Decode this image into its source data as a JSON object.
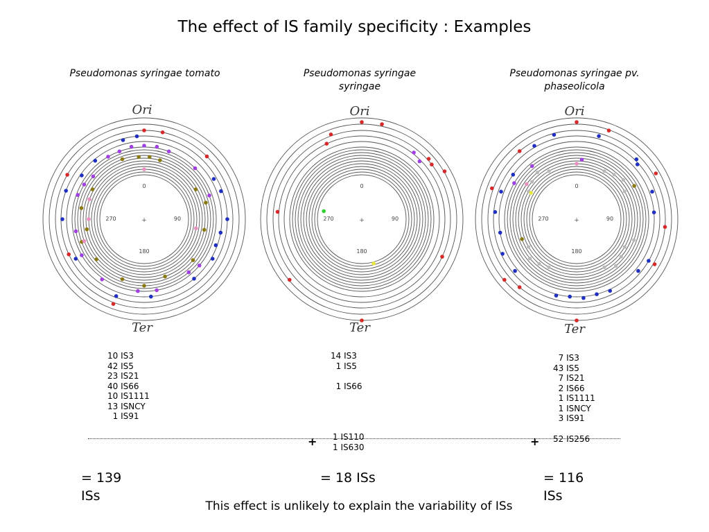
{
  "title": "The effect of IS family specificity : Examples",
  "panels": [
    {
      "species": "Pseudomonas syringae tomato",
      "ori": "Ori",
      "ter": "Ter",
      "degrees": [
        "0",
        "90",
        "180",
        "270"
      ],
      "counts": [
        "10 IS3",
        "42 IS5",
        "23 IS21",
        "40 IS66",
        "10 IS1111",
        "13 ISNCY",
        "  1 IS91"
      ],
      "extra": [],
      "total": "= 139\nISs"
    },
    {
      "species": "Pseudomonas syringae\nsyringae",
      "ori": "Ori",
      "ter": "Ter",
      "degrees": [
        "0",
        "90",
        "180",
        "270"
      ],
      "counts": [
        "14 IS3",
        "  1 IS5",
        "",
        "  1 IS66"
      ],
      "extra": [
        "1 IS110",
        "1 IS630"
      ],
      "plus": "+",
      "total": "= 18 ISs"
    },
    {
      "species": "Pseudomonas syringae pv.\nphaseolicola",
      "ori": "Ori",
      "ter": "Ter",
      "degrees": [
        "0",
        "90",
        "180",
        "270"
      ],
      "counts": [
        "  7 IS3",
        "43 IS5",
        "  7 IS21",
        "  2 IS66",
        "  1 IS1111",
        "  1 ISNCY",
        "  3 IS91"
      ],
      "extra": [
        "52 IS256"
      ],
      "plus": "+",
      "total": "= 116\nISs"
    }
  ],
  "colors": {
    "IS3": "#d62a2a",
    "IS5": "#1f2fc0",
    "IS21": "#a040e0",
    "IS66": "#8a7a10",
    "IS1111": "#e890c0",
    "ISNCY": "#e890c0",
    "IS110": "#30d030",
    "IS630": "#e8e840",
    "IS256": "#b8b8b8",
    "ring": "#555555"
  },
  "conclusion": "This effect is unlikely to explain the variability of ISs"
}
